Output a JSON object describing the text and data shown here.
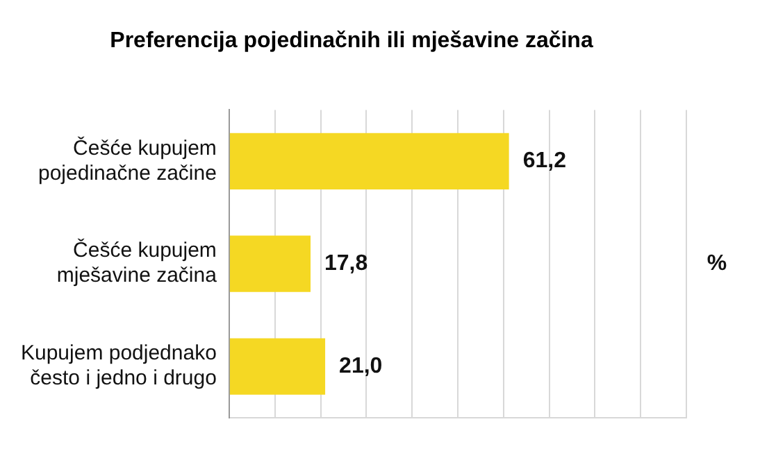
{
  "chart_data": {
    "type": "bar",
    "orientation": "horizontal",
    "title": "Preferencija pojedinačnih ili mješavine začina",
    "xlabel": "%",
    "categories": [
      "Češće kupujem pojedinačne začine",
      "Češće kupujem mješavine začina",
      "Kupujem podjednako često i jedno i drugo"
    ],
    "values": [
      61.2,
      17.8,
      21.0
    ],
    "value_labels": [
      "61,2",
      "17,8",
      "21,0"
    ],
    "color": "#f5d823",
    "xlim": [
      0,
      100
    ],
    "xticks": [
      {
        "value": 0,
        "label": null
      },
      {
        "value": 10,
        "label": null
      },
      {
        "value": 20,
        "label": null
      },
      {
        "value": 30,
        "label": null
      },
      {
        "value": 40,
        "label": null
      },
      {
        "value": 50,
        "label": null
      },
      {
        "value": 60,
        "label": null
      },
      {
        "value": 70,
        "label": null
      },
      {
        "value": 80,
        "label": null
      },
      {
        "value": 90,
        "label": null
      },
      {
        "value": 100,
        "label": null
      }
    ],
    "grid": "x",
    "tick_labels": "y"
  }
}
